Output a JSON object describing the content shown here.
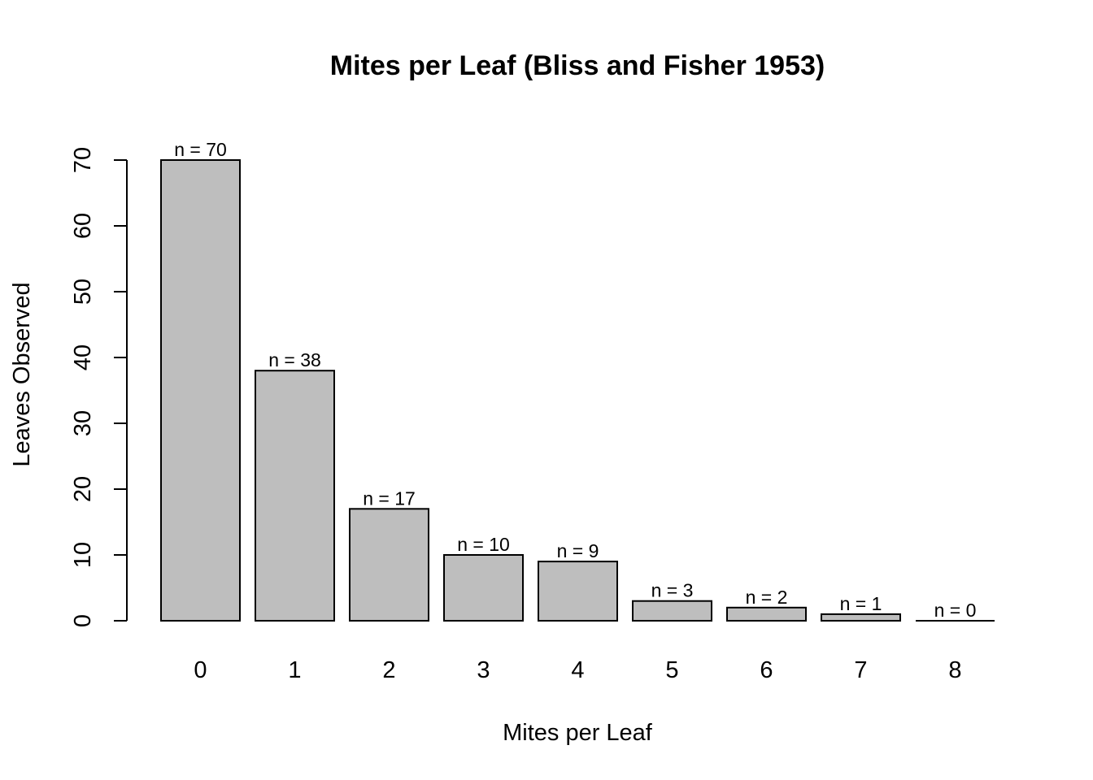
{
  "chart_data": {
    "type": "bar",
    "title": "Mites per Leaf (Bliss and Fisher 1953)",
    "xlabel": "Mites per Leaf",
    "ylabel": "Leaves Observed",
    "categories": [
      "0",
      "1",
      "2",
      "3",
      "4",
      "5",
      "6",
      "7",
      "8"
    ],
    "values": [
      70,
      38,
      17,
      10,
      9,
      3,
      2,
      1,
      0
    ],
    "data_labels": [
      "n = 70",
      "n = 38",
      "n = 17",
      "n = 10",
      "n = 9",
      "n = 3",
      "n = 2",
      "n = 1",
      "n = 0"
    ],
    "y_ticks": [
      0,
      10,
      20,
      30,
      40,
      50,
      60,
      70
    ],
    "ylim": [
      0,
      70
    ],
    "grid": false,
    "legend": "none",
    "bar_color": "#bebebe",
    "edge_color": "#000000"
  }
}
